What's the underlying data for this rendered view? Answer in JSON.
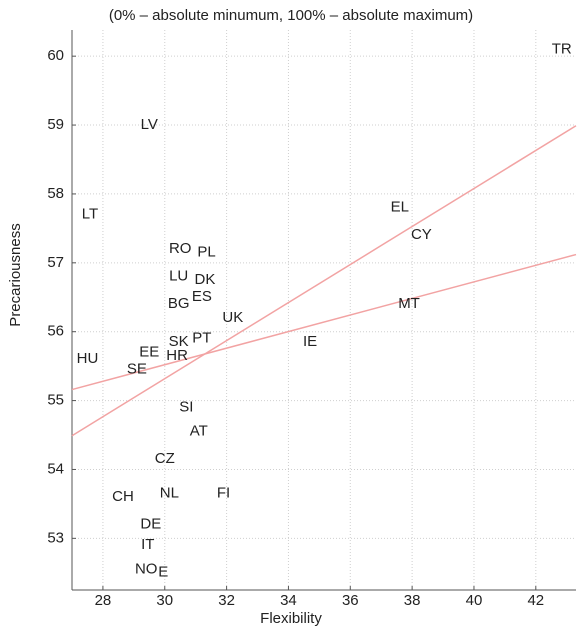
{
  "chart_data": {
    "type": "scatter",
    "title": "(0% – absolute minumum, 100% – absolute maximum)",
    "x_label": "Flexibility",
    "y_label": "Precariousness",
    "labels": [
      "TR",
      "LV",
      "LT",
      "EL",
      "CY",
      "RO",
      "PL",
      "LU",
      "DK",
      "BG",
      "ES",
      "UK",
      "MT",
      "IE",
      "SK",
      "PT",
      "EE",
      "HR",
      "HU",
      "SE",
      "SI",
      "AT",
      "CZ",
      "CH",
      "NL",
      "FI",
      "DE",
      "IT",
      "NO",
      "E"
    ],
    "x": [
      42.84,
      29.5,
      27.58,
      37.6,
      38.3,
      30.5,
      31.35,
      30.45,
      31.3,
      30.45,
      31.2,
      32.2,
      37.9,
      34.7,
      30.45,
      31.2,
      29.5,
      30.4,
      27.5,
      29.1,
      30.7,
      31.1,
      30.0,
      28.65,
      30.15,
      31.9,
      29.55,
      29.45,
      29.4,
      29.95
    ],
    "y": [
      60.1,
      59.0,
      57.7,
      57.8,
      57.4,
      57.2,
      57.15,
      56.8,
      56.75,
      56.4,
      56.5,
      56.2,
      56.4,
      55.85,
      55.85,
      55.9,
      55.7,
      55.65,
      55.6,
      55.45,
      54.9,
      54.55,
      54.15,
      53.6,
      53.65,
      53.65,
      53.2,
      52.9,
      52.55,
      52.5
    ],
    "trendlines": [
      {
        "x": [
          27,
          43.3
        ],
        "y": [
          54.49,
          58.99
        ]
      },
      {
        "x": [
          27,
          43.3
        ],
        "y": [
          55.16,
          57.12
        ]
      }
    ],
    "trend_color": "#f2a3a3",
    "xlim": [
      27,
      43.3
    ],
    "ylim": [
      52.25,
      60.38
    ],
    "xticks": [
      28,
      30,
      32,
      34,
      36,
      38,
      40,
      42
    ],
    "yticks": [
      53,
      54,
      55,
      56,
      57,
      58,
      59,
      60
    ],
    "grid": true
  }
}
